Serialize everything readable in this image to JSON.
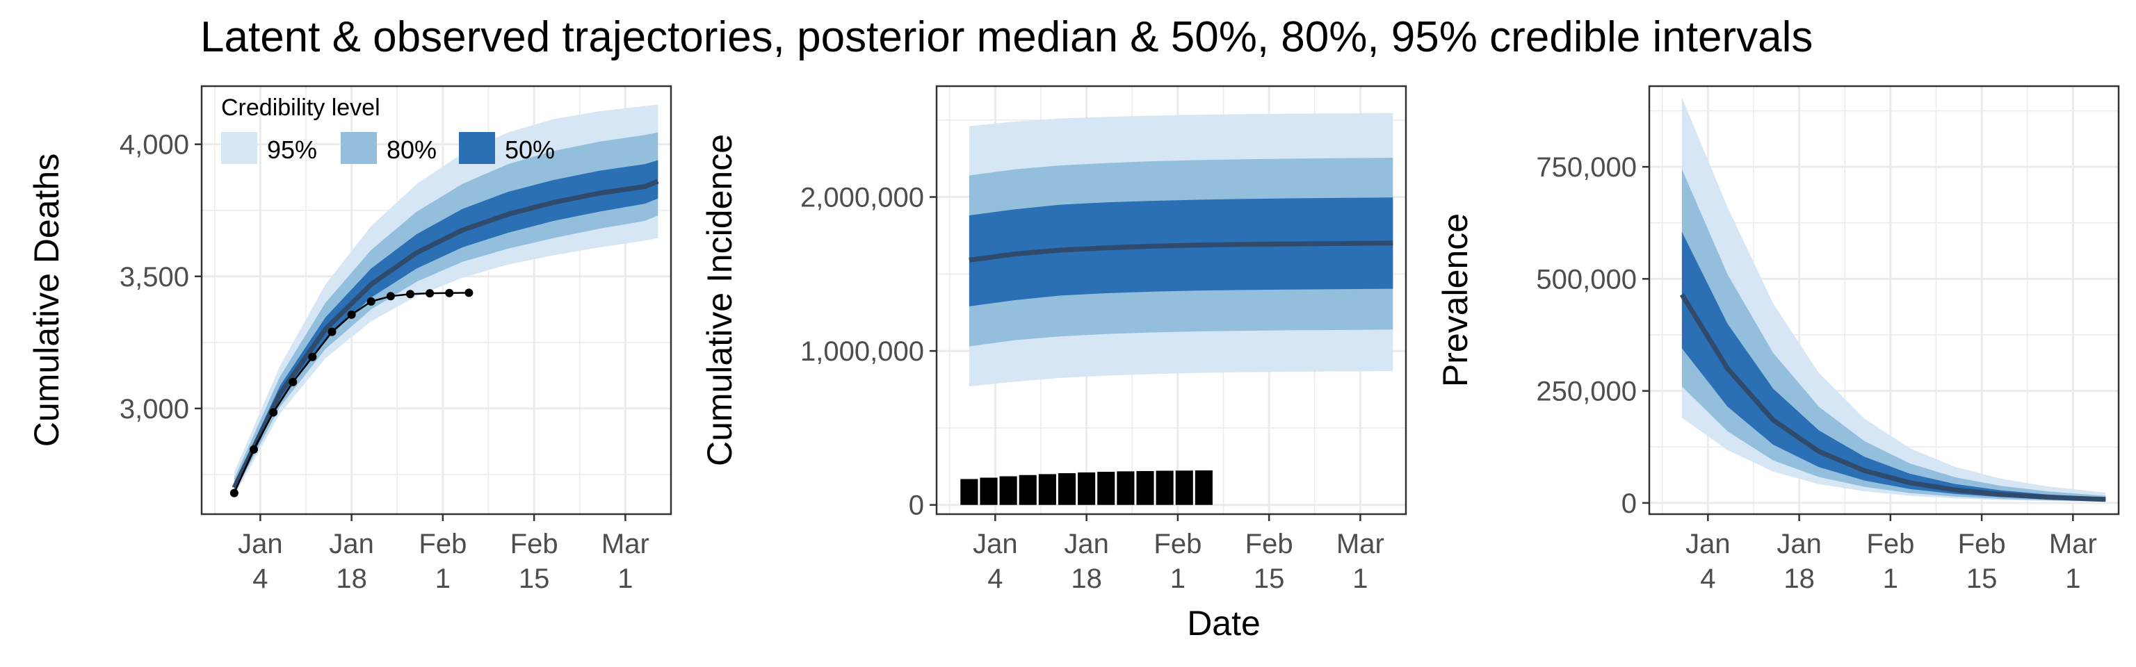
{
  "title": "Latent & observed trajectories, posterior median & 50%, 80%, 95% credible intervals",
  "xlabel": "Date",
  "colors": {
    "band95": "#d6e6f5",
    "band80": "#93bfdd",
    "band50": "#2b6fb4",
    "median": "#2f4a6b",
    "observed": "#000000",
    "grid": "#ebebeb",
    "panel_border": "#333333"
  },
  "legend": {
    "title": "Credibility level",
    "items": [
      {
        "label": "95%",
        "color": "#d6e6f5"
      },
      {
        "label": "80%",
        "color": "#93bfdd"
      },
      {
        "label": "50%",
        "color": "#2b6fb4"
      }
    ]
  },
  "chart_data": [
    {
      "type": "area",
      "ylabel": "Cumulative Deaths",
      "xlim": [
        "2020-12-26",
        "2021-03-08"
      ],
      "ylim": [
        2600,
        4220
      ],
      "yticks": [
        3000,
        3500,
        4000
      ],
      "ytick_labels": [
        "3,000",
        "3,500",
        "4,000"
      ],
      "xticks": [
        "2021-01-04",
        "2021-01-18",
        "2021-02-01",
        "2021-02-15",
        "2021-03-01"
      ],
      "xtick_labels": [
        [
          "Jan",
          "4"
        ],
        [
          "Jan",
          "18"
        ],
        [
          "Feb",
          "1"
        ],
        [
          "Feb",
          "15"
        ],
        [
          "Mar",
          "1"
        ]
      ],
      "grid": true,
      "legend_position": "top-left",
      "latent": {
        "dates": [
          "2020-12-31",
          "2021-01-07",
          "2021-01-14",
          "2021-01-21",
          "2021-01-28",
          "2021-02-04",
          "2021-02-11",
          "2021-02-18",
          "2021-02-25",
          "2021-03-04",
          "2021-03-06"
        ],
        "median": [
          2700,
          3055,
          3300,
          3470,
          3590,
          3675,
          3735,
          3780,
          3815,
          3840,
          3860
        ],
        "lower50": [
          2690,
          3030,
          3260,
          3420,
          3530,
          3610,
          3665,
          3710,
          3745,
          3775,
          3795
        ],
        "upper50": [
          2715,
          3085,
          3345,
          3530,
          3660,
          3755,
          3820,
          3865,
          3900,
          3925,
          3940
        ],
        "lower80": [
          2680,
          3005,
          3225,
          3375,
          3480,
          3555,
          3605,
          3645,
          3680,
          3710,
          3730
        ],
        "upper80": [
          2735,
          3120,
          3400,
          3600,
          3745,
          3850,
          3925,
          3975,
          4010,
          4035,
          4045
        ],
        "lower95": [
          2670,
          2980,
          3190,
          3330,
          3425,
          3495,
          3545,
          3580,
          3610,
          3635,
          3645
        ],
        "upper95": [
          2760,
          3160,
          3470,
          3690,
          3850,
          3965,
          4045,
          4095,
          4125,
          4145,
          4150
        ]
      },
      "observed": {
        "dates": [
          "2020-12-31",
          "2021-01-03",
          "2021-01-06",
          "2021-01-09",
          "2021-01-12",
          "2021-01-15",
          "2021-01-18",
          "2021-01-21",
          "2021-01-24",
          "2021-01-27",
          "2021-01-30",
          "2021-02-02",
          "2021-02-05"
        ],
        "values": [
          2680,
          2845,
          2985,
          3100,
          3195,
          3290,
          3355,
          3405,
          3425,
          3433,
          3436,
          3437,
          3438
        ]
      }
    },
    {
      "type": "area",
      "ylabel": "Cumulative Incidence",
      "xlim": [
        "2020-12-26",
        "2021-03-08"
      ],
      "ylim": [
        -60000,
        2720000
      ],
      "yticks": [
        0,
        1000000,
        2000000
      ],
      "ytick_labels": [
        "0",
        "1,000,000",
        "2,000,000"
      ],
      "xticks": [
        "2021-01-04",
        "2021-01-18",
        "2021-02-01",
        "2021-02-15",
        "2021-03-01"
      ],
      "xtick_labels": [
        [
          "Jan",
          "4"
        ],
        [
          "Jan",
          "18"
        ],
        [
          "Feb",
          "1"
        ],
        [
          "Feb",
          "15"
        ],
        [
          "Mar",
          "1"
        ]
      ],
      "grid": true,
      "latent": {
        "dates": [
          "2020-12-31",
          "2021-01-07",
          "2021-01-14",
          "2021-01-21",
          "2021-01-28",
          "2021-02-04",
          "2021-02-11",
          "2021-02-18",
          "2021-02-25",
          "2021-03-04",
          "2021-03-06"
        ],
        "median": [
          1590000,
          1630000,
          1655000,
          1670000,
          1680000,
          1688000,
          1692000,
          1695000,
          1698000,
          1700000,
          1701000
        ],
        "lower50": [
          1290000,
          1330000,
          1360000,
          1375000,
          1385000,
          1392000,
          1396000,
          1399000,
          1401000,
          1403000,
          1404000
        ],
        "upper50": [
          1880000,
          1920000,
          1950000,
          1965000,
          1975000,
          1982000,
          1987000,
          1991000,
          1994000,
          1996000,
          1997000
        ],
        "lower80": [
          1030000,
          1070000,
          1095000,
          1110000,
          1120000,
          1127000,
          1131000,
          1134000,
          1136000,
          1138000,
          1139000
        ],
        "upper80": [
          2140000,
          2180000,
          2205000,
          2220000,
          2232000,
          2240000,
          2245000,
          2249000,
          2252000,
          2254000,
          2255000
        ],
        "lower95": [
          770000,
          800000,
          825000,
          840000,
          850000,
          857000,
          862000,
          865000,
          867000,
          869000,
          870000
        ],
        "upper95": [
          2460000,
          2490000,
          2510000,
          2520000,
          2528000,
          2534000,
          2538000,
          2541000,
          2543000,
          2545000,
          2546000
        ]
      },
      "observed_bars": {
        "dates": [
          "2020-12-31",
          "2021-01-03",
          "2021-01-06",
          "2021-01-09",
          "2021-01-12",
          "2021-01-15",
          "2021-01-18",
          "2021-01-21",
          "2021-01-24",
          "2021-01-27",
          "2021-01-30",
          "2021-02-02",
          "2021-02-05"
        ],
        "values": [
          168000,
          177000,
          186000,
          194000,
          200000,
          206000,
          211000,
          215000,
          218000,
          220000,
          222000,
          223000,
          224000
        ]
      }
    },
    {
      "type": "area",
      "ylabel": "Prevalence",
      "xlim": [
        "2020-12-26",
        "2021-03-08"
      ],
      "ylim": [
        -25000,
        930000
      ],
      "yticks": [
        0,
        250000,
        500000,
        750000
      ],
      "ytick_labels": [
        "0",
        "250,000",
        "500,000",
        "750,000"
      ],
      "xticks": [
        "2021-01-04",
        "2021-01-18",
        "2021-02-01",
        "2021-02-15",
        "2021-03-01"
      ],
      "xtick_labels": [
        [
          "Jan",
          "4"
        ],
        [
          "Jan",
          "18"
        ],
        [
          "Feb",
          "1"
        ],
        [
          "Feb",
          "15"
        ],
        [
          "Mar",
          "1"
        ]
      ],
      "grid": true,
      "latent": {
        "dates": [
          "2020-12-31",
          "2021-01-07",
          "2021-01-14",
          "2021-01-21",
          "2021-01-28",
          "2021-02-04",
          "2021-02-11",
          "2021-02-18",
          "2021-02-25",
          "2021-03-04",
          "2021-03-06"
        ],
        "median": [
          465000,
          300000,
          185000,
          115000,
          72000,
          45000,
          29000,
          19000,
          13000,
          9000,
          8000
        ],
        "lower50": [
          345000,
          215000,
          130000,
          80000,
          50000,
          31000,
          20000,
          13000,
          9000,
          6000,
          5000
        ],
        "upper50": [
          605000,
          400000,
          255000,
          162000,
          103000,
          65000,
          42000,
          28000,
          19000,
          13000,
          12000
        ],
        "lower80": [
          260000,
          160000,
          95000,
          58000,
          36000,
          22000,
          14000,
          9000,
          6000,
          4000,
          3500
        ],
        "upper80": [
          745000,
          510000,
          335000,
          215000,
          138000,
          88000,
          57000,
          38000,
          26000,
          18000,
          16000
        ],
        "lower95": [
          190000,
          118000,
          70000,
          42000,
          26000,
          16000,
          10000,
          6500,
          4500,
          3000,
          2500
        ],
        "upper95": [
          905000,
          660000,
          445000,
          290000,
          188000,
          122000,
          80000,
          54000,
          37000,
          26000,
          23000
        ]
      }
    }
  ]
}
